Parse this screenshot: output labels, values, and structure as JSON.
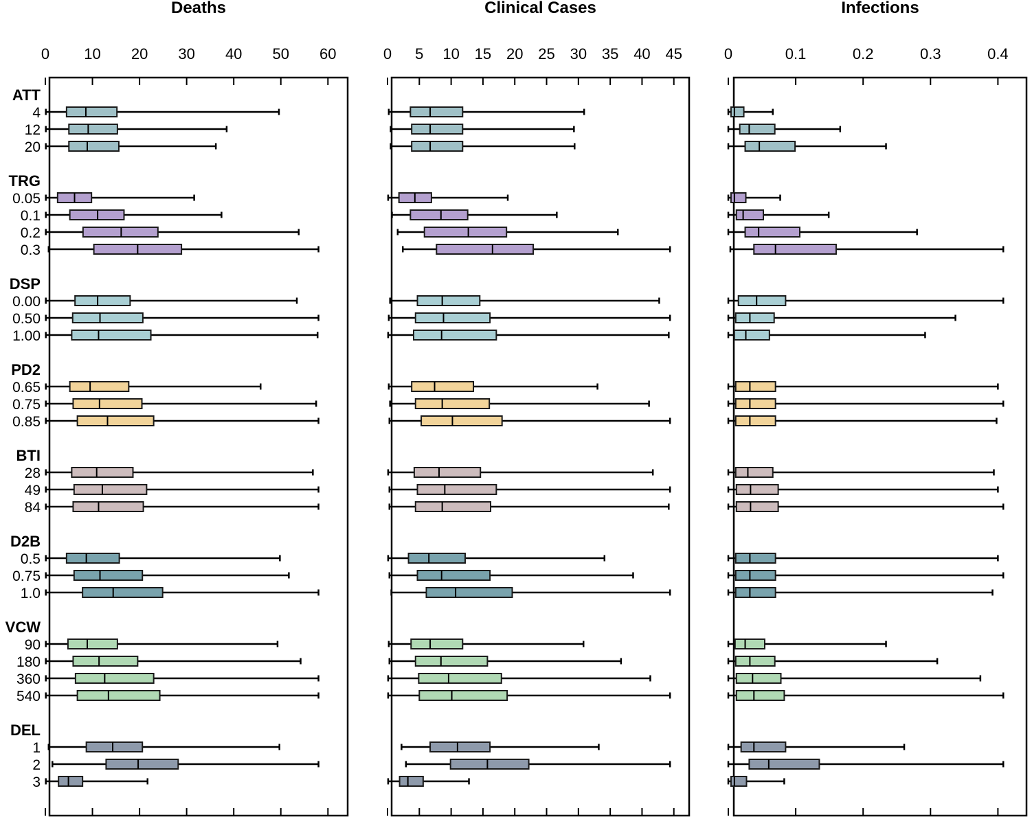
{
  "chart_data": {
    "type": "box",
    "orientation": "horizontal",
    "groups": [
      {
        "name": "ATT",
        "color": "#9fc0c6",
        "levels": [
          "4",
          "12",
          "20"
        ]
      },
      {
        "name": "TRG",
        "color": "#b4a0cf",
        "levels": [
          "0.05",
          "0.1",
          "0.2",
          "0.3"
        ]
      },
      {
        "name": "DSP",
        "color": "#a9cfd4",
        "levels": [
          "0.00",
          "0.50",
          "1.00"
        ]
      },
      {
        "name": "PD2",
        "color": "#f2d49a",
        "levels": [
          "0.65",
          "0.75",
          "0.85"
        ]
      },
      {
        "name": "BTI",
        "color": "#cdbcbd",
        "levels": [
          "28",
          "49",
          "84"
        ]
      },
      {
        "name": "D2B",
        "color": "#79a3ad",
        "levels": [
          "0.5",
          "0.75",
          "1.0"
        ]
      },
      {
        "name": "VCW",
        "color": "#b0d9b4",
        "levels": [
          "90",
          "180",
          "360",
          "540"
        ]
      },
      {
        "name": "DEL",
        "color": "#8e9aab",
        "levels": [
          "1",
          "2",
          "3"
        ]
      }
    ],
    "panels": [
      {
        "title": "Deaths",
        "xlim": [
          0,
          62
        ],
        "ticks": [
          0,
          10,
          20,
          30,
          40,
          50,
          60
        ],
        "tick_labels": [
          "0",
          "10",
          "20",
          "30",
          "40",
          "50",
          "60"
        ],
        "boxes": [
          [
            [
              0.1,
              4.5,
              8.6,
              15.2,
              49.6
            ],
            [
              0.1,
              5.0,
              9.1,
              15.3,
              38.5
            ],
            [
              0.1,
              5.0,
              8.9,
              15.6,
              36.2
            ]
          ],
          [
            [
              0.1,
              2.6,
              6.2,
              9.8,
              31.6
            ],
            [
              0.1,
              5.2,
              11.1,
              16.7,
              37.4
            ],
            [
              0.1,
              8.0,
              16.1,
              23.9,
              53.8
            ],
            [
              0.7,
              10.3,
              19.6,
              28.9,
              58.0
            ]
          ],
          [
            [
              0.1,
              6.3,
              11.1,
              18.0,
              53.4
            ],
            [
              0.1,
              5.8,
              11.6,
              20.7,
              58.0
            ],
            [
              0.1,
              5.6,
              11.3,
              22.4,
              57.8
            ]
          ],
          [
            [
              0.1,
              5.2,
              9.5,
              17.7,
              45.7
            ],
            [
              0.1,
              5.9,
              11.5,
              20.5,
              57.5
            ],
            [
              0.1,
              6.8,
              13.2,
              23.0,
              58.0
            ]
          ],
          [
            [
              0.1,
              5.6,
              10.9,
              18.6,
              56.8
            ],
            [
              0.1,
              6.1,
              12.1,
              21.5,
              58.0
            ],
            [
              0.1,
              5.9,
              11.3,
              20.8,
              58.0
            ]
          ],
          [
            [
              0.1,
              4.5,
              8.7,
              15.7,
              49.8
            ],
            [
              0.1,
              6.1,
              11.6,
              20.6,
              51.7
            ],
            [
              0.1,
              7.9,
              14.4,
              24.9,
              58.0
            ]
          ],
          [
            [
              0.1,
              4.8,
              8.9,
              15.3,
              49.3
            ],
            [
              0.1,
              5.9,
              11.4,
              19.6,
              54.2
            ],
            [
              0.1,
              6.4,
              12.6,
              23.0,
              58.0
            ],
            [
              0.1,
              6.8,
              13.4,
              24.3,
              58.0
            ]
          ],
          [
            [
              0.7,
              8.7,
              14.3,
              20.6,
              49.7
            ],
            [
              1.5,
              12.9,
              19.7,
              28.2,
              58.0
            ],
            [
              0.1,
              2.8,
              4.9,
              7.9,
              21.7
            ]
          ]
        ]
      },
      {
        "title": "Clinical Cases",
        "xlim": [
          0,
          46
        ],
        "ticks": [
          0,
          5,
          10,
          15,
          20,
          25,
          30,
          35,
          40,
          45
        ],
        "tick_labels": [
          "0",
          "5",
          "10",
          "15",
          "20",
          "25",
          "30",
          "35",
          "40",
          "45"
        ],
        "boxes": [
          [
            [
              0.2,
              3.6,
              6.7,
              11.8,
              30.9
            ],
            [
              0.5,
              3.8,
              6.7,
              11.8,
              29.3
            ],
            [
              0.5,
              3.8,
              6.7,
              11.8,
              29.4
            ]
          ],
          [
            [
              0.1,
              1.8,
              4.3,
              6.9,
              18.9
            ],
            [
              0.7,
              3.6,
              8.4,
              12.6,
              26.6
            ],
            [
              1.6,
              5.8,
              12.7,
              18.7,
              36.2
            ],
            [
              2.4,
              7.7,
              16.5,
              22.9,
              44.4
            ]
          ],
          [
            [
              0.4,
              4.7,
              8.6,
              14.5,
              42.7
            ],
            [
              0.2,
              4.4,
              8.8,
              16.1,
              44.4
            ],
            [
              0.1,
              4.1,
              8.5,
              17.1,
              44.2
            ]
          ],
          [
            [
              0.2,
              3.8,
              7.4,
              13.5,
              33.0
            ],
            [
              0.4,
              4.4,
              8.6,
              16.0,
              41.1
            ],
            [
              0.3,
              5.3,
              10.2,
              18.0,
              44.4
            ]
          ],
          [
            [
              0.1,
              4.2,
              8.1,
              14.6,
              41.7
            ],
            [
              0.3,
              4.7,
              9.0,
              17.1,
              44.4
            ],
            [
              0.3,
              4.4,
              8.6,
              16.2,
              44.2
            ]
          ],
          [
            [
              0.1,
              3.3,
              6.5,
              12.2,
              34.1
            ],
            [
              0.3,
              4.7,
              8.5,
              16.1,
              38.6
            ],
            [
              0.6,
              6.1,
              10.7,
              19.6,
              44.4
            ]
          ],
          [
            [
              0.2,
              3.7,
              6.7,
              11.8,
              30.8
            ],
            [
              0.3,
              4.4,
              8.4,
              15.7,
              36.7
            ],
            [
              0.1,
              4.9,
              9.6,
              17.9,
              41.3
            ],
            [
              0.1,
              5.0,
              10.1,
              18.8,
              44.4
            ]
          ],
          [
            [
              2.2,
              6.7,
              11.0,
              16.1,
              33.2
            ],
            [
              2.9,
              9.9,
              15.7,
              22.2,
              44.4
            ],
            [
              0.1,
              1.9,
              3.2,
              5.6,
              12.8
            ]
          ]
        ]
      },
      {
        "title": "Infections",
        "xlim": [
          0,
          0.42
        ],
        "ticks": [
          0,
          0.1,
          0.2,
          0.3,
          0.4
        ],
        "tick_labels": [
          "0",
          "0.1",
          "0.2",
          "0.3",
          "0.4"
        ],
        "boxes": [
          [
            [
              0.0,
              0.004,
              0.009,
              0.023,
              0.066
            ],
            [
              0.0,
              0.017,
              0.031,
              0.069,
              0.166
            ],
            [
              0.0,
              0.025,
              0.046,
              0.099,
              0.234
            ]
          ],
          [
            [
              0.0,
              0.004,
              0.009,
              0.026,
              0.077
            ],
            [
              0.0,
              0.012,
              0.022,
              0.052,
              0.149
            ],
            [
              0.0,
              0.025,
              0.045,
              0.106,
              0.28
            ],
            [
              0.003,
              0.038,
              0.07,
              0.16,
              0.408
            ]
          ],
          [
            [
              0.0,
              0.015,
              0.042,
              0.085,
              0.408
            ],
            [
              0.0,
              0.011,
              0.032,
              0.068,
              0.337
            ],
            [
              0.0,
              0.009,
              0.026,
              0.061,
              0.292
            ]
          ],
          [
            [
              0.0,
              0.011,
              0.032,
              0.07,
              0.4
            ],
            [
              0.0,
              0.011,
              0.032,
              0.07,
              0.408
            ],
            [
              0.0,
              0.011,
              0.032,
              0.07,
              0.398
            ]
          ],
          [
            [
              0.0,
              0.011,
              0.029,
              0.066,
              0.394
            ],
            [
              0.0,
              0.012,
              0.033,
              0.074,
              0.4
            ],
            [
              0.0,
              0.012,
              0.033,
              0.074,
              0.408
            ]
          ],
          [
            [
              0.0,
              0.011,
              0.032,
              0.07,
              0.4
            ],
            [
              0.0,
              0.011,
              0.032,
              0.07,
              0.408
            ],
            [
              0.0,
              0.011,
              0.032,
              0.07,
              0.392
            ]
          ],
          [
            [
              0.0,
              0.01,
              0.025,
              0.054,
              0.234
            ],
            [
              0.0,
              0.011,
              0.032,
              0.069,
              0.31
            ],
            [
              0.0,
              0.012,
              0.036,
              0.078,
              0.374
            ],
            [
              0.0,
              0.012,
              0.038,
              0.083,
              0.408
            ]
          ],
          [
            [
              0.0,
              0.019,
              0.038,
              0.085,
              0.261
            ],
            [
              0.0,
              0.031,
              0.06,
              0.135,
              0.408
            ],
            [
              0.0,
              0.004,
              0.009,
              0.027,
              0.083
            ]
          ]
        ]
      }
    ]
  }
}
